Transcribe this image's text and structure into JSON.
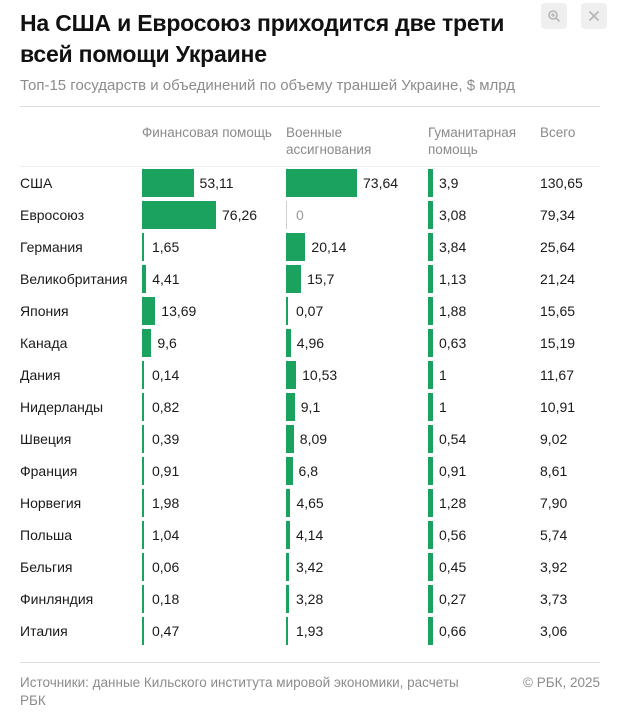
{
  "header": {
    "title": "На США и Евросоюз приходится две трети всей помощи Украине",
    "subtitle": "Топ-15 государств и объединений по объему траншей Украине, $ млрд"
  },
  "toolbar": {
    "zoom_icon": "zoom-in-icon",
    "close_icon": "close-icon"
  },
  "colors": {
    "bar": "#1aa25e",
    "muted_text": "#8c8c8c"
  },
  "chart_data": {
    "type": "table",
    "title": "На США и Евросоюз приходится две трети всей помощи Украине",
    "subtitle": "Топ-15 государств и объединений по объему траншей Украине, $ млрд",
    "columns": [
      {
        "key": "finance",
        "label": "Финансовая помощь"
      },
      {
        "key": "military",
        "label": "Военные ассигнования"
      },
      {
        "key": "humanitarian",
        "label": "Гуманитарная помощь"
      },
      {
        "key": "total",
        "label": "Всего"
      }
    ],
    "rows": [
      {
        "country": "США",
        "finance": "53,11",
        "military": "73,64",
        "humanitarian": "3,9",
        "total": "130,65"
      },
      {
        "country": "Евросоюз",
        "finance": "76,26",
        "military": "0",
        "humanitarian": "3,08",
        "total": "79,34"
      },
      {
        "country": "Германия",
        "finance": "1,65",
        "military": "20,14",
        "humanitarian": "3,84",
        "total": "25,64"
      },
      {
        "country": "Великобритания",
        "finance": "4,41",
        "military": "15,7",
        "humanitarian": "1,13",
        "total": "21,24"
      },
      {
        "country": "Япония",
        "finance": "13,69",
        "military": "0,07",
        "humanitarian": "1,88",
        "total": "15,65"
      },
      {
        "country": "Канада",
        "finance": "9,6",
        "military": "4,96",
        "humanitarian": "0,63",
        "total": "15,19"
      },
      {
        "country": "Дания",
        "finance": "0,14",
        "military": "10,53",
        "humanitarian": "1",
        "total": "11,67"
      },
      {
        "country": "Нидерланды",
        "finance": "0,82",
        "military": "9,1",
        "humanitarian": "1",
        "total": "10,91"
      },
      {
        "country": "Швеция",
        "finance": "0,39",
        "military": "8,09",
        "humanitarian": "0,54",
        "total": "9,02"
      },
      {
        "country": "Франция",
        "finance": "0,91",
        "military": "6,8",
        "humanitarian": "0,91",
        "total": "8,61"
      },
      {
        "country": "Норвегия",
        "finance": "1,98",
        "military": "4,65",
        "humanitarian": "1,28",
        "total": "7,90"
      },
      {
        "country": "Польша",
        "finance": "1,04",
        "military": "4,14",
        "humanitarian": "0,56",
        "total": "5,74"
      },
      {
        "country": "Бельгия",
        "finance": "0,06",
        "military": "3,42",
        "humanitarian": "0,45",
        "total": "3,92"
      },
      {
        "country": "Финляндия",
        "finance": "0,18",
        "military": "3,28",
        "humanitarian": "0,27",
        "total": "3,73"
      },
      {
        "country": "Италия",
        "finance": "0,47",
        "military": "1,93",
        "humanitarian": "0,66",
        "total": "3,06"
      }
    ]
  },
  "footer": {
    "source": "Источники: данные Кильского института мировой экономики, расчеты РБК",
    "copyright": "© РБК, 2025"
  }
}
